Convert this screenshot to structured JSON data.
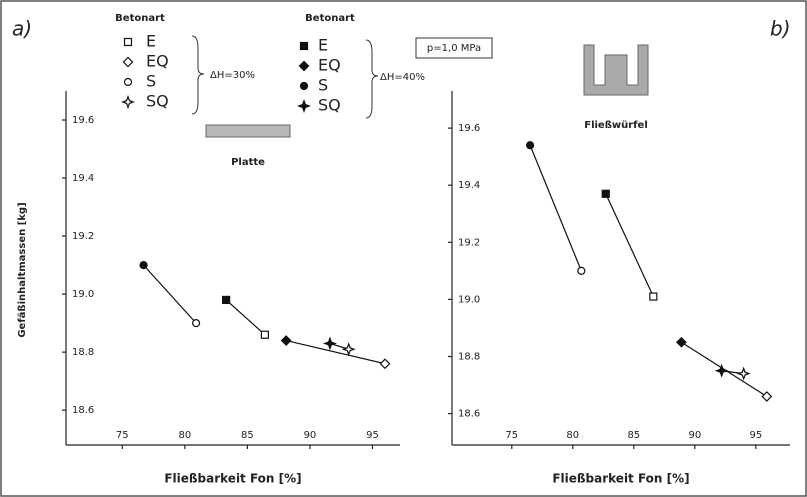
{
  "chart_data": [
    {
      "type": "scatter",
      "panel": "a)",
      "legend_title": "Betonart",
      "open_note": "ΔH=30%",
      "filled_note": "ΔH=40%",
      "annotation": "p=1,0 MPa",
      "specimen": "Platte",
      "xlabel": "Fließbarkeit Fon [%]",
      "ylabel": "Gefäßinhaltmassen [kg]",
      "xlim": [
        70.5,
        97.2
      ],
      "xticks": [
        75,
        80,
        85,
        90,
        95
      ],
      "ylim": [
        18.48,
        19.7
      ],
      "yticks": [
        18.6,
        18.8,
        {
          "value": 19,
          "label": "19.0"
        },
        19.2,
        19.4,
        19.6
      ],
      "color": "#111111",
      "series": [
        {
          "name": "E",
          "marker": "square",
          "x": [
            83.3,
            86.4
          ],
          "values": [
            18.98,
            18.86
          ],
          "filled": [
            true,
            false
          ]
        },
        {
          "name": "EQ",
          "marker": "diamond",
          "x": [
            88.1,
            96.0
          ],
          "values": [
            18.84,
            18.76
          ],
          "filled": [
            true,
            false
          ]
        },
        {
          "name": "S",
          "marker": "circle",
          "x": [
            76.7,
            80.9
          ],
          "values": [
            19.1,
            18.9
          ],
          "filled": [
            true,
            false
          ]
        },
        {
          "name": "SQ",
          "marker": "star",
          "x": [
            91.6,
            93.1
          ],
          "values": [
            18.83,
            18.81
          ],
          "filled": [
            true,
            false
          ]
        }
      ]
    },
    {
      "type": "scatter",
      "panel": "b)",
      "specimen": "Fließwürfel",
      "xlabel": "Fließbarkeit Fon [%]",
      "xlim": [
        70.1,
        97.8
      ],
      "xticks": [
        75,
        80,
        85,
        90,
        95
      ],
      "ylim": [
        18.49,
        19.73
      ],
      "yticks": [
        18.6,
        18.8,
        {
          "value": 19,
          "label": "19.0"
        },
        19.2,
        19.4,
        19.6
      ],
      "color": "#111111",
      "series": [
        {
          "name": "E",
          "marker": "square",
          "x": [
            82.7,
            86.6
          ],
          "values": [
            19.37,
            19.01
          ],
          "filled": [
            true,
            false
          ]
        },
        {
          "name": "EQ",
          "marker": "diamond",
          "x": [
            88.9,
            95.9
          ],
          "values": [
            18.85,
            18.66
          ],
          "filled": [
            true,
            false
          ]
        },
        {
          "name": "S",
          "marker": "circle",
          "x": [
            76.5,
            80.7
          ],
          "values": [
            19.54,
            19.1
          ],
          "filled": [
            true,
            false
          ]
        },
        {
          "name": "SQ",
          "marker": "star",
          "x": [
            92.2,
            94.0
          ],
          "values": [
            18.75,
            18.74
          ],
          "filled": [
            true,
            false
          ]
        }
      ]
    }
  ]
}
